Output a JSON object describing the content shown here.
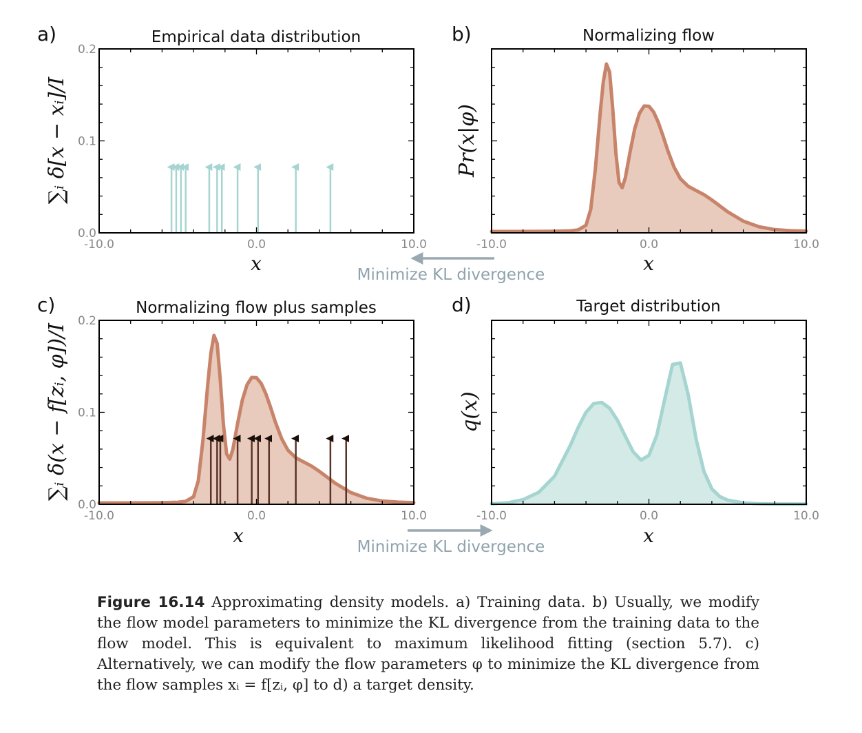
{
  "colors": {
    "teal": "#a6d5d1",
    "teal_fill": "#d3eae7",
    "orange": "#c8846a",
    "orange_fill": "#e8cbbd",
    "dark_arrow": "#5a3326",
    "kl_arrow": "#9aa9b1",
    "axis": "#000000",
    "tick_label": "#888888"
  },
  "caption": {
    "figure_label": "Figure 16.14",
    "text": " Approximating density models. a) Training data. b) Usually, we modify the flow model parameters to minimize the KL divergence from the training data to the flow model. This is equivalent to maximum likelihood fitting (section 5.7). c) Alternatively, we can modify the flow parameters φ to minimize the KL divergence from the flow samples xᵢ = f[zᵢ, φ] to d) a target density."
  },
  "kl_labels": {
    "top": "Minimize KL divergence",
    "bottom": "Minimize KL divergence"
  },
  "chart_data": [
    {
      "panel": "a)",
      "type": "scatter",
      "title": "Empirical data distribution",
      "xlabel": "x",
      "ylabel": "∑ᵢ δ[x − xᵢ]/I",
      "xlim": [
        -10,
        10
      ],
      "ylim": [
        0,
        0.2
      ],
      "xticks": [
        "-10.0",
        "0.0",
        "10.0"
      ],
      "yticks": [
        "0.0",
        "0.1",
        "0.2"
      ],
      "grid": false,
      "series": [
        {
          "kind": "impulses",
          "color": "#a6d5d1",
          "height": 0.073,
          "x": [
            -5.4,
            -5.1,
            -4.8,
            -4.5,
            -3.0,
            -2.5,
            -2.2,
            -1.2,
            0.1,
            2.5,
            4.7
          ]
        }
      ]
    },
    {
      "panel": "b)",
      "type": "area",
      "title": "Normalizing flow",
      "xlabel": "x",
      "ylabel": "Pr(x|φ)",
      "xlim": [
        -10,
        10
      ],
      "ylim": [
        0,
        0.2
      ],
      "xticks": [
        "-10.0",
        "0.0",
        "10.0"
      ],
      "grid": false,
      "series": [
        {
          "kind": "density",
          "color": "#c8846a",
          "x": [
            -10,
            -8,
            -6,
            -5,
            -4.5,
            -4,
            -3.7,
            -3.4,
            -3.1,
            -2.9,
            -2.7,
            -2.5,
            -2.3,
            -2.1,
            -1.9,
            -1.7,
            -1.5,
            -1.2,
            -0.9,
            -0.6,
            -0.3,
            0,
            0.3,
            0.6,
            0.9,
            1.2,
            1.6,
            2,
            2.5,
            3,
            3.5,
            4,
            4.5,
            5,
            6,
            7,
            8,
            9,
            10
          ],
          "y": [
            0.0015,
            0.0015,
            0.0017,
            0.0022,
            0.0032,
            0.0082,
            0.0256,
            0.07,
            0.1299,
            0.1639,
            0.1836,
            0.175,
            0.1357,
            0.0869,
            0.0548,
            0.0491,
            0.0596,
            0.0879,
            0.1131,
            0.13,
            0.1379,
            0.1377,
            0.1313,
            0.12,
            0.1052,
            0.0895,
            0.0713,
            0.0589,
            0.0506,
            0.046,
            0.0415,
            0.0358,
            0.0294,
            0.0229,
            0.0127,
            0.0066,
            0.0035,
            0.0023,
            0.0018
          ]
        }
      ]
    },
    {
      "panel": "c)",
      "type": "area",
      "title": "Normalizing flow plus samples",
      "xlabel": "x",
      "ylabel": "∑ᵢ δ(x − f[zᵢ, φ])/I",
      "xlim": [
        -10,
        10
      ],
      "ylim": [
        0,
        0.2
      ],
      "xticks": [
        "-10.0",
        "0.0",
        "10.0"
      ],
      "yticks": [
        "0.0",
        "0.1",
        "0.2"
      ],
      "grid": false,
      "series": [
        {
          "kind": "density",
          "color": "#c8846a",
          "x": [
            -10,
            -8,
            -6,
            -5,
            -4.5,
            -4,
            -3.7,
            -3.4,
            -3.1,
            -2.9,
            -2.7,
            -2.5,
            -2.3,
            -2.1,
            -1.9,
            -1.7,
            -1.5,
            -1.2,
            -0.9,
            -0.6,
            -0.3,
            0,
            0.3,
            0.6,
            0.9,
            1.2,
            1.6,
            2,
            2.5,
            3,
            3.5,
            4,
            4.5,
            5,
            6,
            7,
            8,
            9,
            10
          ],
          "y": [
            0.0015,
            0.0015,
            0.0017,
            0.0022,
            0.0032,
            0.0082,
            0.0256,
            0.07,
            0.1299,
            0.1639,
            0.1836,
            0.175,
            0.1357,
            0.0869,
            0.0548,
            0.0491,
            0.0596,
            0.0879,
            0.1131,
            0.13,
            0.1379,
            0.1377,
            0.1313,
            0.12,
            0.1052,
            0.0895,
            0.0713,
            0.0589,
            0.0506,
            0.046,
            0.0415,
            0.0358,
            0.0294,
            0.0229,
            0.0127,
            0.0066,
            0.0035,
            0.0023,
            0.0018
          ]
        },
        {
          "kind": "impulses",
          "color": "#5a3326",
          "height": 0.073,
          "x": [
            -2.9,
            -2.5,
            -2.3,
            -1.2,
            -0.3,
            0.1,
            0.8,
            2.5,
            4.7,
            5.7
          ]
        }
      ]
    },
    {
      "panel": "d)",
      "type": "area",
      "title": "Target distribution",
      "xlabel": "x",
      "ylabel": "q(x)",
      "xlim": [
        -10,
        10
      ],
      "ylim": [
        0,
        0.2
      ],
      "xticks": [
        "-10.0",
        "0.0",
        "10.0"
      ],
      "grid": false,
      "series": [
        {
          "kind": "density",
          "color": "#a6d5d1",
          "x": [
            -10,
            -9,
            -8,
            -7,
            -6,
            -5,
            -4.5,
            -4,
            -3.5,
            -3,
            -2.5,
            -2,
            -1.5,
            -1,
            -0.5,
            0,
            0.5,
            1,
            1.5,
            2,
            2.5,
            3,
            3.5,
            4,
            4.5,
            5,
            6,
            7,
            8,
            10
          ],
          "y": [
            0.0006,
            0.0016,
            0.005,
            0.013,
            0.0304,
            0.064,
            0.0834,
            0.1,
            0.1096,
            0.1107,
            0.1045,
            0.0914,
            0.074,
            0.0571,
            0.0481,
            0.0532,
            0.075,
            0.114,
            0.152,
            0.1537,
            0.1191,
            0.071,
            0.0356,
            0.0167,
            0.0085,
            0.0045,
            0.0015,
            0.0006,
            0.0003,
            0.0002
          ]
        }
      ]
    }
  ]
}
